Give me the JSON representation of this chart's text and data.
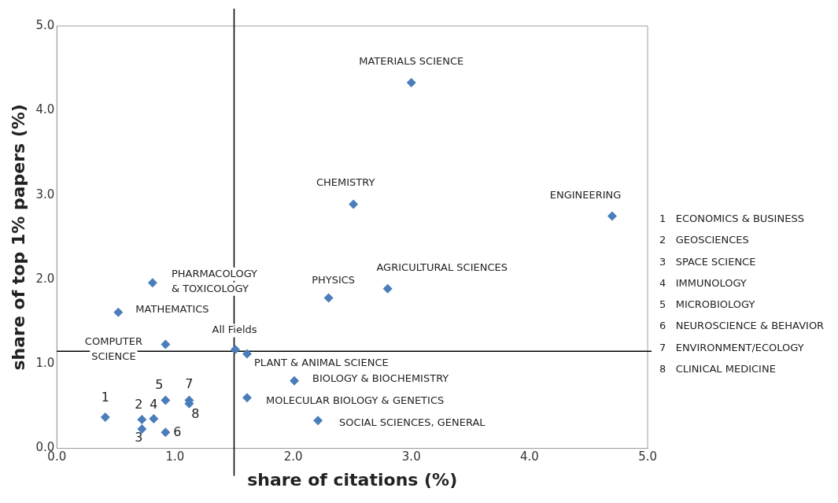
{
  "chart_data": {
    "type": "scatter",
    "xlabel": "share of citations (%)",
    "ylabel": "share of top 1% papers (%)",
    "x": [
      3.0,
      2.51,
      4.7,
      0.81,
      2.3,
      2.8,
      0.52,
      0.92,
      1.51,
      1.61,
      2.01,
      1.61,
      2.21,
      0.41,
      0.72,
      0.72,
      0.82,
      0.92,
      0.92,
      1.12,
      1.12
    ],
    "series": [
      {
        "color": "#4a7ebb",
        "values": [
          4.33,
          2.89,
          2.75,
          1.96,
          1.78,
          1.89,
          1.61,
          1.23,
          1.17,
          1.12,
          0.8,
          0.6,
          0.33,
          0.37,
          0.34,
          0.23,
          0.35,
          0.57,
          0.19,
          0.57,
          0.53
        ]
      }
    ],
    "marker": "diamond",
    "grid": false,
    "legend": false,
    "xlim": [
      0,
      5
    ],
    "xticks": [
      {
        "value": 0,
        "label": "0.0"
      },
      {
        "value": 1,
        "label": "1.0"
      },
      {
        "value": 2,
        "label": "2.0"
      },
      {
        "value": 3,
        "label": "3.0"
      },
      {
        "value": 4,
        "label": "4.0"
      },
      {
        "value": 5,
        "label": "5.0"
      }
    ],
    "ylim": [
      0,
      5
    ],
    "yticks": [
      {
        "value": 0,
        "label": "0.0"
      },
      {
        "value": 1,
        "label": "1.0"
      },
      {
        "value": 2,
        "label": "2.0"
      },
      {
        "value": 3,
        "label": "3.0"
      },
      {
        "value": 4,
        "label": "4.0"
      },
      {
        "value": 5,
        "label": "5.0"
      }
    ],
    "ref_lines": [
      {
        "axis": "x",
        "value": 1.5,
        "color": "#000000"
      },
      {
        "axis": "y",
        "value": 1.15,
        "color": "#000000"
      }
    ],
    "annotations": [
      {
        "text": "MATERIALS SCIENCE",
        "x": 3.0,
        "y": 4.33
      },
      {
        "text": "CHEMISTRY",
        "x": 2.51,
        "y": 2.89
      },
      {
        "text": "ENGINEERING",
        "x": 4.7,
        "y": 2.75
      },
      {
        "text": "PHARMACOLOGY\n& TOXICOLOGY",
        "x": 0.81,
        "y": 1.96
      },
      {
        "text": "PHYSICS",
        "x": 2.3,
        "y": 1.78
      },
      {
        "text": "AGRICULTURAL SCIENCES",
        "x": 2.8,
        "y": 1.89
      },
      {
        "text": "MATHEMATICS",
        "x": 0.52,
        "y": 1.61
      },
      {
        "text": "COMPUTER\nSCIENCE",
        "x": 0.92,
        "y": 1.23
      },
      {
        "text": "All Fields",
        "x": 1.51,
        "y": 1.17
      },
      {
        "text": "PLANT & ANIMAL SCIENCE",
        "x": 1.61,
        "y": 1.12
      },
      {
        "text": "BIOLOGY & BIOCHEMISTRY",
        "x": 2.01,
        "y": 0.8
      },
      {
        "text": "MOLECULAR BIOLOGY & GENETICS",
        "x": 1.61,
        "y": 0.6
      },
      {
        "text": "SOCIAL SCIENCES, GENERAL",
        "x": 2.21,
        "y": 0.33
      },
      {
        "text": "1",
        "x": 0.41,
        "y": 0.37
      },
      {
        "text": "2",
        "x": 0.72,
        "y": 0.34
      },
      {
        "text": "3",
        "x": 0.72,
        "y": 0.23
      },
      {
        "text": "4",
        "x": 0.82,
        "y": 0.35
      },
      {
        "text": "5",
        "x": 0.92,
        "y": 0.57
      },
      {
        "text": "6",
        "x": 0.92,
        "y": 0.19
      },
      {
        "text": "7",
        "x": 1.12,
        "y": 0.57
      },
      {
        "text": "8",
        "x": 1.12,
        "y": 0.53
      },
      "1   ECONOMICS & BUSINESS",
      "2   GEOSCIENCES",
      "3   SPACE SCIENCE",
      "4   IMMUNOLOGY",
      "5   MICROBIOLOGY",
      "6   NEUROSCIENCE & BEHAVIOR",
      "7   ENVIRONMENT/ECOLOGY",
      "8   CLINICAL MEDICINE"
    ]
  }
}
